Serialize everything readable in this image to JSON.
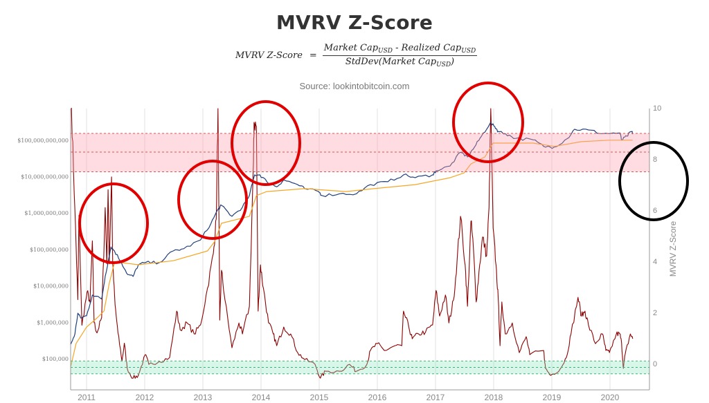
{
  "title": "MVRV Z-Score",
  "formula": {
    "lhs": "MVRV Z-Score",
    "equals": "=",
    "num_a": "Market Cap",
    "num_a_sub": "USD",
    "num_b": " - Realized Cap",
    "num_b_sub": "USD",
    "den_a": "StdDev(Market Cap",
    "den_a_sub": "USD",
    "den_b": ")"
  },
  "source": "Source: lookintobitcoin.com",
  "chart_data": {
    "type": "line",
    "title": "MVRV Z-Score",
    "xlabel": "",
    "ylabel_right": "MVRV Z-Score",
    "ylabel_left": "",
    "x_range": [
      2010.74,
      2020.45
    ],
    "x_ticks": [
      "2011",
      "2012",
      "2013",
      "2014",
      "2015",
      "2016",
      "2017",
      "2018",
      "2019",
      "2020"
    ],
    "x_tick_values": [
      2011,
      2012,
      2013,
      2014,
      2015,
      2016,
      2017,
      2018,
      2019,
      2020
    ],
    "right_axis": {
      "range": [
        -1.1,
        10
      ],
      "ticks": [
        "0",
        "2",
        "4",
        "6",
        "8",
        "10"
      ],
      "tick_values": [
        0,
        2,
        4,
        6,
        8,
        10
      ]
    },
    "left_axis": {
      "scale": "log",
      "range_log10": [
        4.1,
        11.87
      ],
      "ticks": [
        "$100,000",
        "$1,000,000",
        "$10,000,000",
        "$100,000,000",
        "$1,000,000,000",
        "$10,000,000,000",
        "$100,000,000,000"
      ],
      "tick_log10": [
        5,
        6,
        7,
        8,
        9,
        10,
        11
      ]
    },
    "bands": [
      {
        "name": "red-zone",
        "z_range": [
          7.5,
          9.0
        ],
        "z_mid": 8.27,
        "color": "#ff9aa8"
      },
      {
        "name": "green-zone",
        "z_range": [
          -0.4,
          0.1
        ],
        "z_mid": -0.15,
        "color": "#8fe6bf"
      }
    ],
    "grid": "vertical",
    "series": [
      {
        "name": "Z-Score",
        "axis": "right",
        "color": "#8b0000",
        "points": [
          [
            2010.74,
            10.0
          ],
          [
            2010.8,
            6.0
          ],
          [
            2010.85,
            2.5
          ],
          [
            2010.87,
            5.8
          ],
          [
            2010.92,
            1.5
          ],
          [
            2011.01,
            2.8
          ],
          [
            2011.06,
            2.4
          ],
          [
            2011.1,
            4.8
          ],
          [
            2011.13,
            1.6
          ],
          [
            2011.18,
            1.2
          ],
          [
            2011.26,
            1.8
          ],
          [
            2011.32,
            6.1
          ],
          [
            2011.35,
            3.9
          ],
          [
            2011.37,
            6.8
          ],
          [
            2011.39,
            3.9
          ],
          [
            2011.43,
            7.3
          ],
          [
            2011.45,
            3.9
          ],
          [
            2011.49,
            2.3
          ],
          [
            2011.54,
            1.2
          ],
          [
            2011.61,
            0.1
          ],
          [
            2011.65,
            0.8
          ],
          [
            2011.7,
            -0.2
          ],
          [
            2011.8,
            -0.57
          ],
          [
            2011.89,
            -0.46
          ],
          [
            2012.01,
            0.35
          ],
          [
            2012.07,
            -0.03
          ],
          [
            2012.25,
            0.08
          ],
          [
            2012.43,
            0.24
          ],
          [
            2012.55,
            2.05
          ],
          [
            2012.61,
            1.32
          ],
          [
            2012.73,
            1.59
          ],
          [
            2012.85,
            1.16
          ],
          [
            2012.96,
            1.51
          ],
          [
            2013.08,
            2.95
          ],
          [
            2013.18,
            4.3
          ],
          [
            2013.23,
            5.65
          ],
          [
            2013.26,
            10.0
          ],
          [
            2013.29,
            1.7
          ],
          [
            2013.32,
            3.65
          ],
          [
            2013.38,
            2.49
          ],
          [
            2013.5,
            0.62
          ],
          [
            2013.62,
            1.59
          ],
          [
            2013.68,
            1.16
          ],
          [
            2013.8,
            2.24
          ],
          [
            2013.87,
            7.92
          ],
          [
            2013.88,
            9.43
          ],
          [
            2013.92,
            9.27
          ],
          [
            2013.95,
            2.05
          ],
          [
            2013.99,
            3.86
          ],
          [
            2014.04,
            2.95
          ],
          [
            2014.13,
            1.59
          ],
          [
            2014.21,
            1.16
          ],
          [
            2014.27,
            0.7
          ],
          [
            2014.39,
            1.43
          ],
          [
            2014.51,
            1.16
          ],
          [
            2014.63,
            0.43
          ],
          [
            2014.75,
            0.16
          ],
          [
            2014.93,
            -0.03
          ],
          [
            2015.02,
            -0.57
          ],
          [
            2015.11,
            -0.3
          ],
          [
            2015.35,
            -0.3
          ],
          [
            2015.52,
            -0.03
          ],
          [
            2015.64,
            -0.3
          ],
          [
            2015.82,
            -0.03
          ],
          [
            2015.88,
            0.51
          ],
          [
            2016.0,
            0.78
          ],
          [
            2016.12,
            0.51
          ],
          [
            2016.3,
            0.7
          ],
          [
            2016.42,
            0.7
          ],
          [
            2016.45,
            2.05
          ],
          [
            2016.54,
            1.43
          ],
          [
            2016.6,
            0.97
          ],
          [
            2016.71,
            1.16
          ],
          [
            2016.83,
            1.24
          ],
          [
            2016.95,
            1.51
          ],
          [
            2017.01,
            2.86
          ],
          [
            2017.07,
            1.86
          ],
          [
            2017.17,
            2.68
          ],
          [
            2017.23,
            1.59
          ],
          [
            2017.31,
            2.49
          ],
          [
            2017.37,
            4.0
          ],
          [
            2017.43,
            5.76
          ],
          [
            2017.51,
            3.86
          ],
          [
            2017.55,
            2.24
          ],
          [
            2017.61,
            5.57
          ],
          [
            2017.65,
            4.57
          ],
          [
            2017.7,
            2.41
          ],
          [
            2017.76,
            3.86
          ],
          [
            2017.81,
            4.95
          ],
          [
            2017.88,
            4.22
          ],
          [
            2017.92,
            6.1
          ],
          [
            2017.95,
            10.0
          ],
          [
            2017.99,
            5.3
          ],
          [
            2018.04,
            3.86
          ],
          [
            2018.08,
            2.49
          ],
          [
            2018.11,
            0.7
          ],
          [
            2018.14,
            2.41
          ],
          [
            2018.2,
            1.16
          ],
          [
            2018.32,
            1.59
          ],
          [
            2018.44,
            0.43
          ],
          [
            2018.56,
            1.05
          ],
          [
            2018.62,
            0.35
          ],
          [
            2018.86,
            0.51
          ],
          [
            2018.89,
            -0.19
          ],
          [
            2018.98,
            -0.46
          ],
          [
            2019.15,
            -0.19
          ],
          [
            2019.25,
            0.24
          ],
          [
            2019.33,
            1.16
          ],
          [
            2019.45,
            2.59
          ],
          [
            2019.51,
            1.86
          ],
          [
            2019.57,
            2.05
          ],
          [
            2019.63,
            1.51
          ],
          [
            2019.75,
            0.78
          ],
          [
            2019.87,
            1.16
          ],
          [
            2019.93,
            0.51
          ],
          [
            2019.99,
            0.43
          ],
          [
            2020.11,
            1.16
          ],
          [
            2020.17,
            1.16
          ],
          [
            2020.2,
            0.78
          ],
          [
            2020.23,
            -0.19
          ],
          [
            2020.26,
            0.35
          ],
          [
            2020.35,
            1.16
          ],
          [
            2020.39,
            0.97
          ]
        ]
      },
      {
        "name": "Market Cap",
        "axis": "left",
        "unit": "log10 USD",
        "color": "#1f3f7a",
        "points": [
          [
            2010.73,
            5.4
          ],
          [
            2010.8,
            5.68
          ],
          [
            2010.85,
            6.25
          ],
          [
            2010.9,
            6.12
          ],
          [
            2011.0,
            6.18
          ],
          [
            2011.1,
            6.75
          ],
          [
            2011.26,
            6.64
          ],
          [
            2011.32,
            7.26
          ],
          [
            2011.42,
            8.07
          ],
          [
            2011.48,
            7.96
          ],
          [
            2011.6,
            7.64
          ],
          [
            2011.71,
            7.31
          ],
          [
            2011.8,
            7.26
          ],
          [
            2011.89,
            7.58
          ],
          [
            2012.01,
            7.64
          ],
          [
            2012.25,
            7.64
          ],
          [
            2012.49,
            7.96
          ],
          [
            2012.67,
            8.02
          ],
          [
            2012.96,
            8.26
          ],
          [
            2013.14,
            8.72
          ],
          [
            2013.26,
            9.1
          ],
          [
            2013.32,
            9.21
          ],
          [
            2013.5,
            8.91
          ],
          [
            2013.68,
            9.16
          ],
          [
            2013.8,
            9.48
          ],
          [
            2013.89,
            10.05
          ],
          [
            2013.98,
            10.05
          ],
          [
            2014.1,
            9.86
          ],
          [
            2014.27,
            9.72
          ],
          [
            2014.39,
            9.91
          ],
          [
            2014.63,
            9.78
          ],
          [
            2014.75,
            9.67
          ],
          [
            2014.99,
            9.59
          ],
          [
            2015.05,
            9.48
          ],
          [
            2015.35,
            9.53
          ],
          [
            2015.64,
            9.53
          ],
          [
            2015.88,
            9.78
          ],
          [
            2016.18,
            9.86
          ],
          [
            2016.45,
            10.05
          ],
          [
            2016.65,
            9.97
          ],
          [
            2016.95,
            10.05
          ],
          [
            2017.01,
            10.16
          ],
          [
            2017.25,
            10.29
          ],
          [
            2017.43,
            10.67
          ],
          [
            2017.55,
            10.54
          ],
          [
            2017.67,
            10.81
          ],
          [
            2017.79,
            11.11
          ],
          [
            2017.94,
            11.47
          ],
          [
            2018.02,
            11.37
          ],
          [
            2018.08,
            11.24
          ],
          [
            2018.2,
            11.18
          ],
          [
            2018.38,
            11.05
          ],
          [
            2018.68,
            11.01
          ],
          [
            2018.86,
            10.83
          ],
          [
            2019.04,
            10.81
          ],
          [
            2019.27,
            11.05
          ],
          [
            2019.39,
            11.3
          ],
          [
            2019.63,
            11.28
          ],
          [
            2019.87,
            11.18
          ],
          [
            2020.17,
            11.2
          ],
          [
            2020.2,
            11.0
          ],
          [
            2020.29,
            11.11
          ],
          [
            2020.37,
            11.24
          ],
          [
            2020.39,
            11.19
          ]
        ]
      },
      {
        "name": "Realized Cap",
        "axis": "left",
        "unit": "log10 USD",
        "color": "#f5a623",
        "points": [
          [
            2010.73,
            4.79
          ],
          [
            2010.82,
            5.42
          ],
          [
            2011.0,
            5.87
          ],
          [
            2011.18,
            6.12
          ],
          [
            2011.3,
            6.31
          ],
          [
            2011.39,
            7.07
          ],
          [
            2011.48,
            7.64
          ],
          [
            2011.6,
            7.64
          ],
          [
            2011.89,
            7.58
          ],
          [
            2012.49,
            7.69
          ],
          [
            2013.08,
            7.96
          ],
          [
            2013.2,
            8.21
          ],
          [
            2013.32,
            8.72
          ],
          [
            2013.8,
            8.91
          ],
          [
            2013.92,
            9.48
          ],
          [
            2014.1,
            9.59
          ],
          [
            2014.75,
            9.67
          ],
          [
            2015.46,
            9.59
          ],
          [
            2015.94,
            9.67
          ],
          [
            2016.65,
            9.78
          ],
          [
            2017.25,
            9.97
          ],
          [
            2017.49,
            10.1
          ],
          [
            2017.61,
            10.35
          ],
          [
            2017.85,
            10.54
          ],
          [
            2017.99,
            10.92
          ],
          [
            2018.68,
            10.92
          ],
          [
            2019.04,
            10.83
          ],
          [
            2019.51,
            10.96
          ],
          [
            2019.99,
            11.0
          ],
          [
            2020.39,
            11.0
          ]
        ]
      }
    ],
    "annotations": [
      {
        "shape": "ellipse",
        "color": "#e00000",
        "around_year": 2011.45,
        "around_z": 5.5
      },
      {
        "shape": "ellipse",
        "color": "#e00000",
        "around_year": 2013.26,
        "around_z": 6.4
      },
      {
        "shape": "ellipse",
        "color": "#e00000",
        "around_year": 2013.88,
        "around_z": 8.6
      },
      {
        "shape": "ellipse",
        "color": "#e00000",
        "around_year": 2017.95,
        "around_z": 9.4
      },
      {
        "shape": "ellipse",
        "color": "#000000",
        "around_right_axis_z": 7.0
      }
    ]
  }
}
